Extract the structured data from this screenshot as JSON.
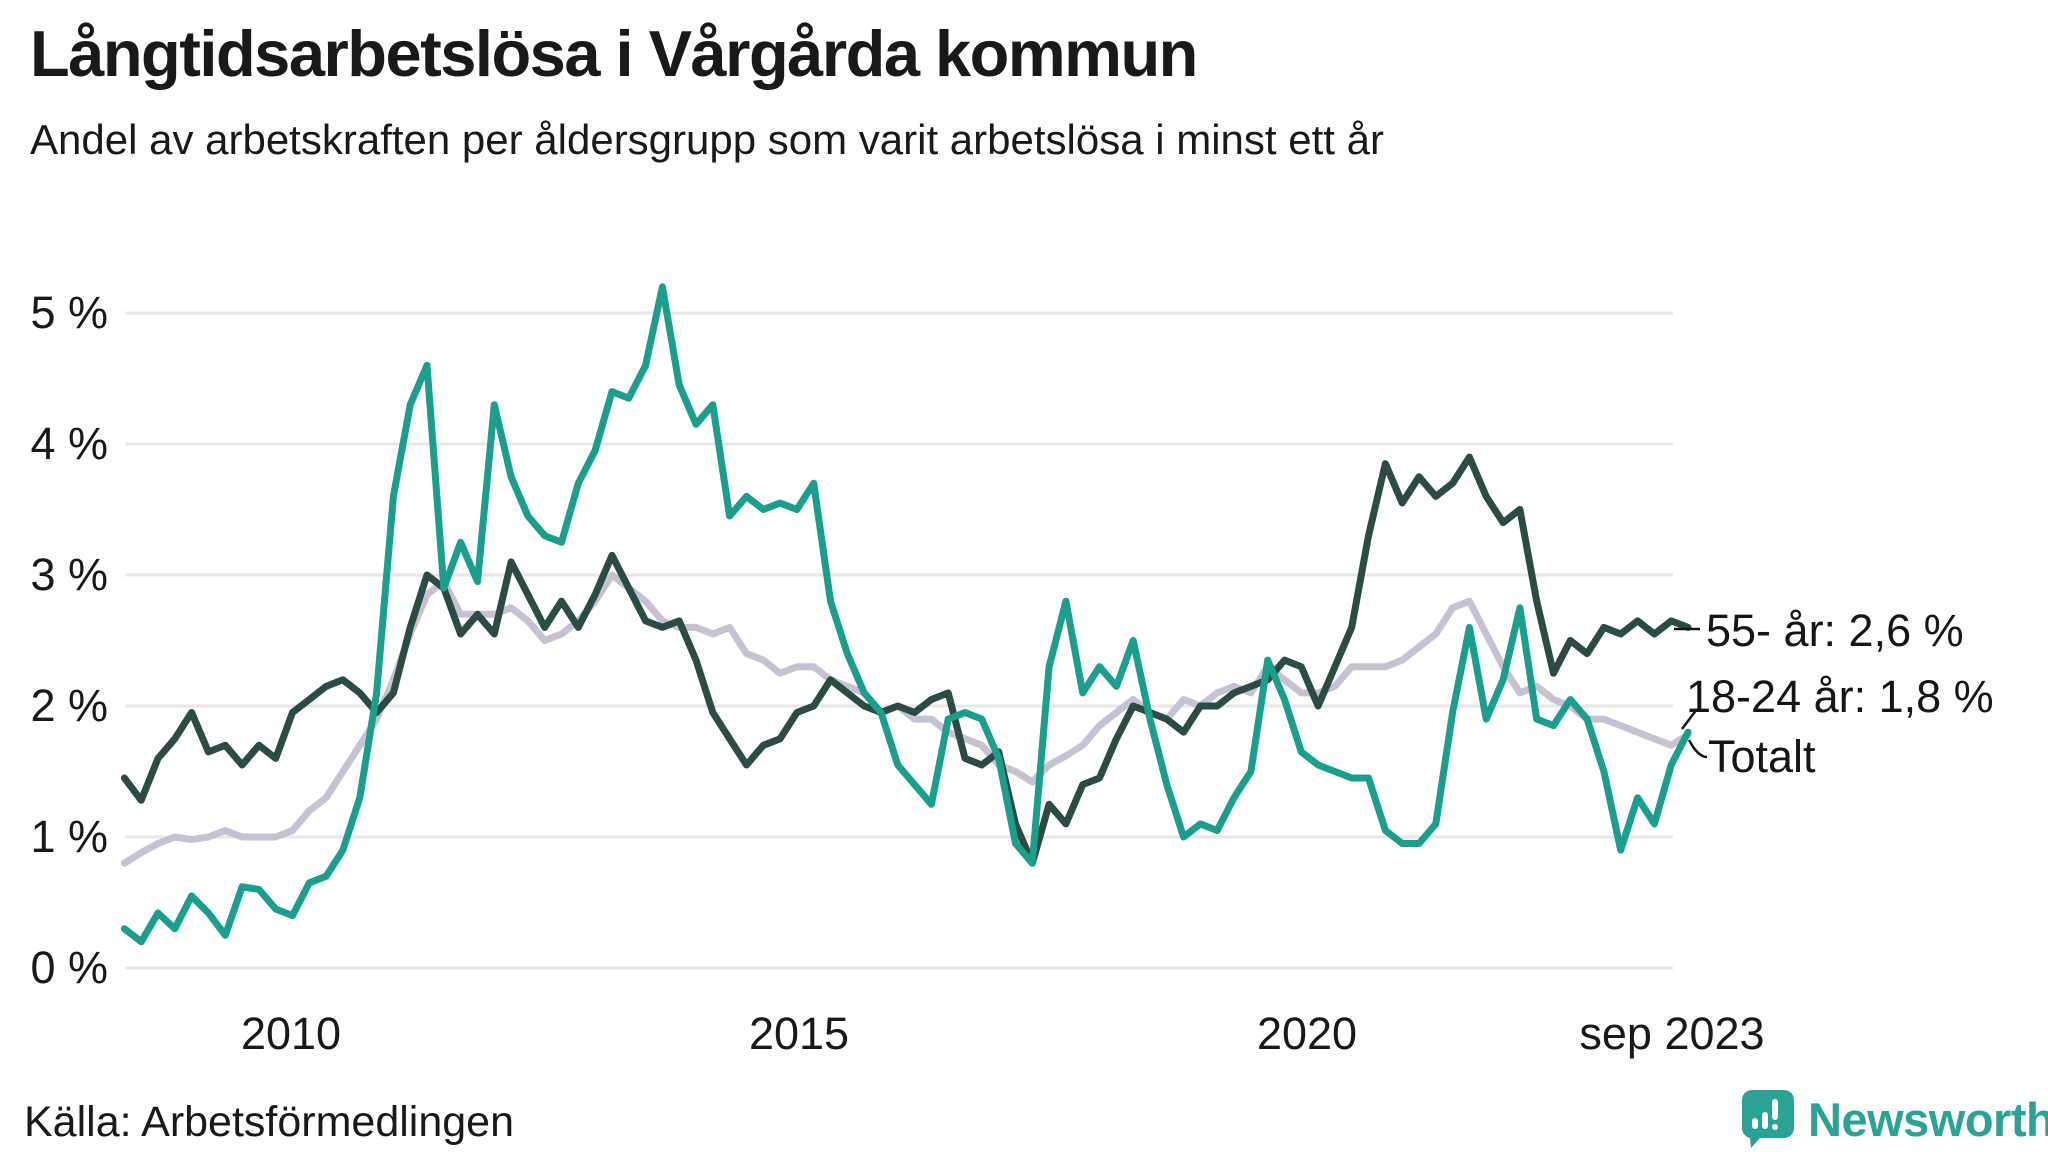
{
  "header": {
    "title": "Långtidsarbetslösa i Vårgårda kommun",
    "subtitle": "Andel av arbetskraften per åldersgrupp som varit arbetslösa i minst ett år"
  },
  "footer": {
    "source": "Källa: Arbetsförmedlingen",
    "logo_text": "Newsworthy"
  },
  "annotations": [
    {
      "id": "ann-55",
      "label": "55- år: 2,6 %"
    },
    {
      "id": "ann-1824",
      "label": "18-24 år: 1,8 %"
    },
    {
      "id": "ann-totalt",
      "label": "Totalt"
    }
  ],
  "colors": {
    "teal": "#1b9e8b",
    "dark_green": "#2b4b44",
    "lavender": "#c6c2d1",
    "grid": "#e7e7ea",
    "text": "#191919",
    "logo_teal": "#2ba394"
  },
  "chart_data": {
    "type": "line",
    "title": "Långtidsarbetslösa i Vårgårda kommun",
    "subtitle": "Andel av arbetskraften per åldersgrupp som varit arbetslösa i minst ett år",
    "unit": "% av arbetskraften",
    "x_start": 2008.36,
    "x_end": 2023.75,
    "ylim": [
      0,
      5.3
    ],
    "grid": true,
    "legend_position": "right-annotations",
    "y_ticks": [
      {
        "label": "5 %",
        "value": 5
      },
      {
        "label": "4 %",
        "value": 4
      },
      {
        "label": "3 %",
        "value": 3
      },
      {
        "label": "2 %",
        "value": 2
      },
      {
        "label": "1 %",
        "value": 1
      },
      {
        "label": "0 %",
        "value": 0
      }
    ],
    "x_ticks": [
      {
        "label": "2010",
        "year": 2010
      },
      {
        "label": "2015",
        "year": 2015
      },
      {
        "label": "2020",
        "year": 2020
      },
      {
        "label": "sep 2023",
        "year": 2023.67
      }
    ],
    "series": [
      {
        "name": "Totalt",
        "color": "#c6c2d1",
        "end_label": "Totalt",
        "end_value": 1.78,
        "values": [
          0.8,
          0.88,
          0.95,
          1.0,
          0.98,
          1.0,
          1.05,
          1.0,
          1.0,
          1.0,
          1.05,
          1.2,
          1.3,
          1.5,
          1.7,
          1.9,
          2.2,
          2.55,
          2.85,
          2.95,
          2.7,
          2.7,
          2.7,
          2.75,
          2.65,
          2.5,
          2.55,
          2.65,
          2.8,
          3.0,
          2.9,
          2.8,
          2.65,
          2.6,
          2.6,
          2.55,
          2.6,
          2.4,
          2.35,
          2.25,
          2.3,
          2.3,
          2.2,
          2.15,
          2.1,
          1.95,
          2.0,
          1.9,
          1.9,
          1.8,
          1.75,
          1.7,
          1.55,
          1.5,
          1.42,
          1.55,
          1.62,
          1.7,
          1.85,
          1.95,
          2.05,
          1.95,
          1.9,
          2.05,
          2.0,
          2.1,
          2.15,
          2.1,
          2.3,
          2.2,
          2.1,
          2.1,
          2.15,
          2.3,
          2.3,
          2.3,
          2.35,
          2.45,
          2.55,
          2.75,
          2.8,
          2.55,
          2.3,
          2.1,
          2.15,
          2.05,
          2.0,
          1.9,
          1.9,
          1.85,
          1.8,
          1.75,
          1.7,
          1.78
        ]
      },
      {
        "name": "55- år",
        "color": "#2b4b44",
        "end_label": "55- år: 2,6 %",
        "end_value": 2.6,
        "values": [
          1.45,
          1.28,
          1.6,
          1.75,
          1.95,
          1.65,
          1.7,
          1.55,
          1.7,
          1.6,
          1.95,
          2.05,
          2.15,
          2.2,
          2.1,
          1.95,
          2.1,
          2.6,
          3.0,
          2.9,
          2.55,
          2.7,
          2.55,
          3.1,
          2.85,
          2.6,
          2.8,
          2.6,
          2.85,
          3.15,
          2.9,
          2.65,
          2.6,
          2.65,
          2.35,
          1.95,
          1.75,
          1.55,
          1.7,
          1.75,
          1.95,
          2.0,
          2.2,
          2.1,
          2.0,
          1.95,
          2.0,
          1.95,
          2.05,
          2.1,
          1.6,
          1.55,
          1.65,
          1.1,
          0.8,
          1.25,
          1.1,
          1.4,
          1.45,
          1.75,
          2.0,
          1.95,
          1.9,
          1.8,
          2.0,
          2.0,
          2.1,
          2.15,
          2.2,
          2.35,
          2.3,
          2.0,
          2.3,
          2.6,
          3.3,
          3.85,
          3.55,
          3.75,
          3.6,
          3.7,
          3.9,
          3.6,
          3.4,
          3.5,
          2.8,
          2.25,
          2.5,
          2.4,
          2.6,
          2.55,
          2.65,
          2.55,
          2.65,
          2.6
        ]
      },
      {
        "name": "18-24 år",
        "color": "#1b9e8b",
        "end_label": "18-24 år: 1,8 %",
        "end_value": 1.8,
        "values": [
          0.3,
          0.2,
          0.42,
          0.3,
          0.55,
          0.42,
          0.25,
          0.62,
          0.6,
          0.45,
          0.4,
          0.65,
          0.7,
          0.9,
          1.3,
          2.1,
          3.6,
          4.3,
          4.6,
          2.9,
          3.25,
          2.95,
          4.3,
          3.75,
          3.45,
          3.3,
          3.25,
          3.7,
          3.95,
          4.4,
          4.35,
          4.6,
          5.2,
          4.45,
          4.15,
          4.3,
          3.45,
          3.6,
          3.5,
          3.55,
          3.5,
          3.7,
          2.8,
          2.4,
          2.1,
          1.95,
          1.55,
          1.4,
          1.25,
          1.9,
          1.95,
          1.9,
          1.6,
          0.95,
          0.8,
          2.3,
          2.8,
          2.1,
          2.3,
          2.15,
          2.5,
          1.9,
          1.4,
          1.0,
          1.1,
          1.05,
          1.3,
          1.5,
          2.35,
          2.05,
          1.65,
          1.55,
          1.5,
          1.45,
          1.45,
          1.05,
          0.95,
          0.95,
          1.1,
          1.95,
          2.6,
          1.9,
          2.2,
          2.75,
          1.9,
          1.85,
          2.05,
          1.9,
          1.5,
          0.9,
          1.3,
          1.1,
          1.55,
          1.8
        ]
      }
    ]
  }
}
